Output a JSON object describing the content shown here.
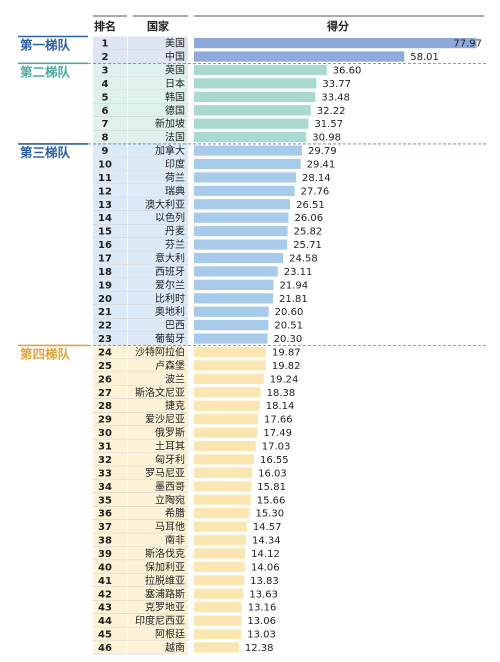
{
  "header": {
    "rank": "排名",
    "country": "国家",
    "score": "得分"
  },
  "tiers": [
    {
      "label": "第一梯队",
      "start": 0,
      "end": 1,
      "bar_color": "#8eaadb",
      "cell_color": "#dfe4f2",
      "label_color": "#2e62a8"
    },
    {
      "label": "第二梯队",
      "start": 2,
      "end": 7,
      "bar_color": "#a9d9cf",
      "cell_color": "#dff1ec",
      "label_color": "#4fa99a"
    },
    {
      "label": "第三梯队",
      "start": 8,
      "end": 22,
      "bar_color": "#a8caea",
      "cell_color": "#dceaf7",
      "label_color": "#2e62a8"
    },
    {
      "label": "第四梯队",
      "start": 23,
      "end": 45,
      "bar_color": "#fbe5b0",
      "cell_color": "#fdf1d6",
      "label_color": "#e0a43a"
    }
  ],
  "chart_data": {
    "type": "bar",
    "orientation": "horizontal",
    "title": "",
    "xlabel": "得分",
    "ylabel": "国家",
    "xlim": [
      0,
      80
    ],
    "categories": [
      "美国",
      "中国",
      "英国",
      "日本",
      "韩国",
      "德国",
      "新加坡",
      "法国",
      "加拿大",
      "印度",
      "荷兰",
      "瑞典",
      "澳大利亚",
      "以色列",
      "丹麦",
      "芬兰",
      "意大利",
      "西班牙",
      "爱尔兰",
      "比利时",
      "奥地利",
      "巴西",
      "葡萄牙",
      "沙特阿拉伯",
      "卢森堡",
      "波兰",
      "斯洛文尼亚",
      "捷克",
      "爱沙尼亚",
      "俄罗斯",
      "土耳其",
      "匈牙利",
      "罗马尼亚",
      "墨西哥",
      "立陶宛",
      "希腊",
      "马耳他",
      "南非",
      "斯洛伐克",
      "保加利亚",
      "拉脱维亚",
      "塞浦路斯",
      "克罗地亚",
      "印度尼西亚",
      "阿根廷",
      "越南"
    ],
    "ranks": [
      "1",
      "2",
      "3",
      "4",
      "5",
      "6",
      "7",
      "8",
      "9",
      "10",
      "11",
      "12",
      "13",
      "14",
      "15",
      "16",
      "17",
      "18",
      "19",
      "20",
      "21",
      "22",
      "23",
      "24",
      "25",
      "26",
      "27",
      "28",
      "29",
      "30",
      "31",
      "32",
      "33",
      "34",
      "35",
      "36",
      "37",
      "38",
      "39",
      "40",
      "41",
      "42",
      "43",
      "44",
      "45",
      "46"
    ],
    "values": [
      77.97,
      58.01,
      36.6,
      33.77,
      33.48,
      32.22,
      31.57,
      30.98,
      29.79,
      29.41,
      28.14,
      27.76,
      26.51,
      26.06,
      25.82,
      25.71,
      24.58,
      23.11,
      21.94,
      21.81,
      20.6,
      20.51,
      20.3,
      19.87,
      19.82,
      19.24,
      18.38,
      18.14,
      17.66,
      17.49,
      17.03,
      16.55,
      16.03,
      15.81,
      15.66,
      15.3,
      14.57,
      14.34,
      14.12,
      14.06,
      13.83,
      13.63,
      13.16,
      13.06,
      13.03,
      12.38
    ],
    "labels": [
      "77.97",
      "58.01",
      "36.60",
      "33.77",
      "33.48",
      "32.22",
      "31.57",
      "30.98",
      "29.79",
      "29.41",
      "28.14",
      "27.76",
      "26.51",
      "26.06",
      "25.82",
      "25.71",
      "24.58",
      "23.11",
      "21.94",
      "21.81",
      "20.60",
      "20.51",
      "20.30",
      "19.87",
      "19.82",
      "19.24",
      "18.38",
      "18.14",
      "17.66",
      "17.49",
      "17.03",
      "16.55",
      "16.03",
      "15.81",
      "15.66",
      "15.30",
      "14.57",
      "14.34",
      "14.12",
      "14.06",
      "13.83",
      "13.63",
      "13.16",
      "13.06",
      "13.03",
      "12.38"
    ],
    "grid": false,
    "legend": "none"
  }
}
